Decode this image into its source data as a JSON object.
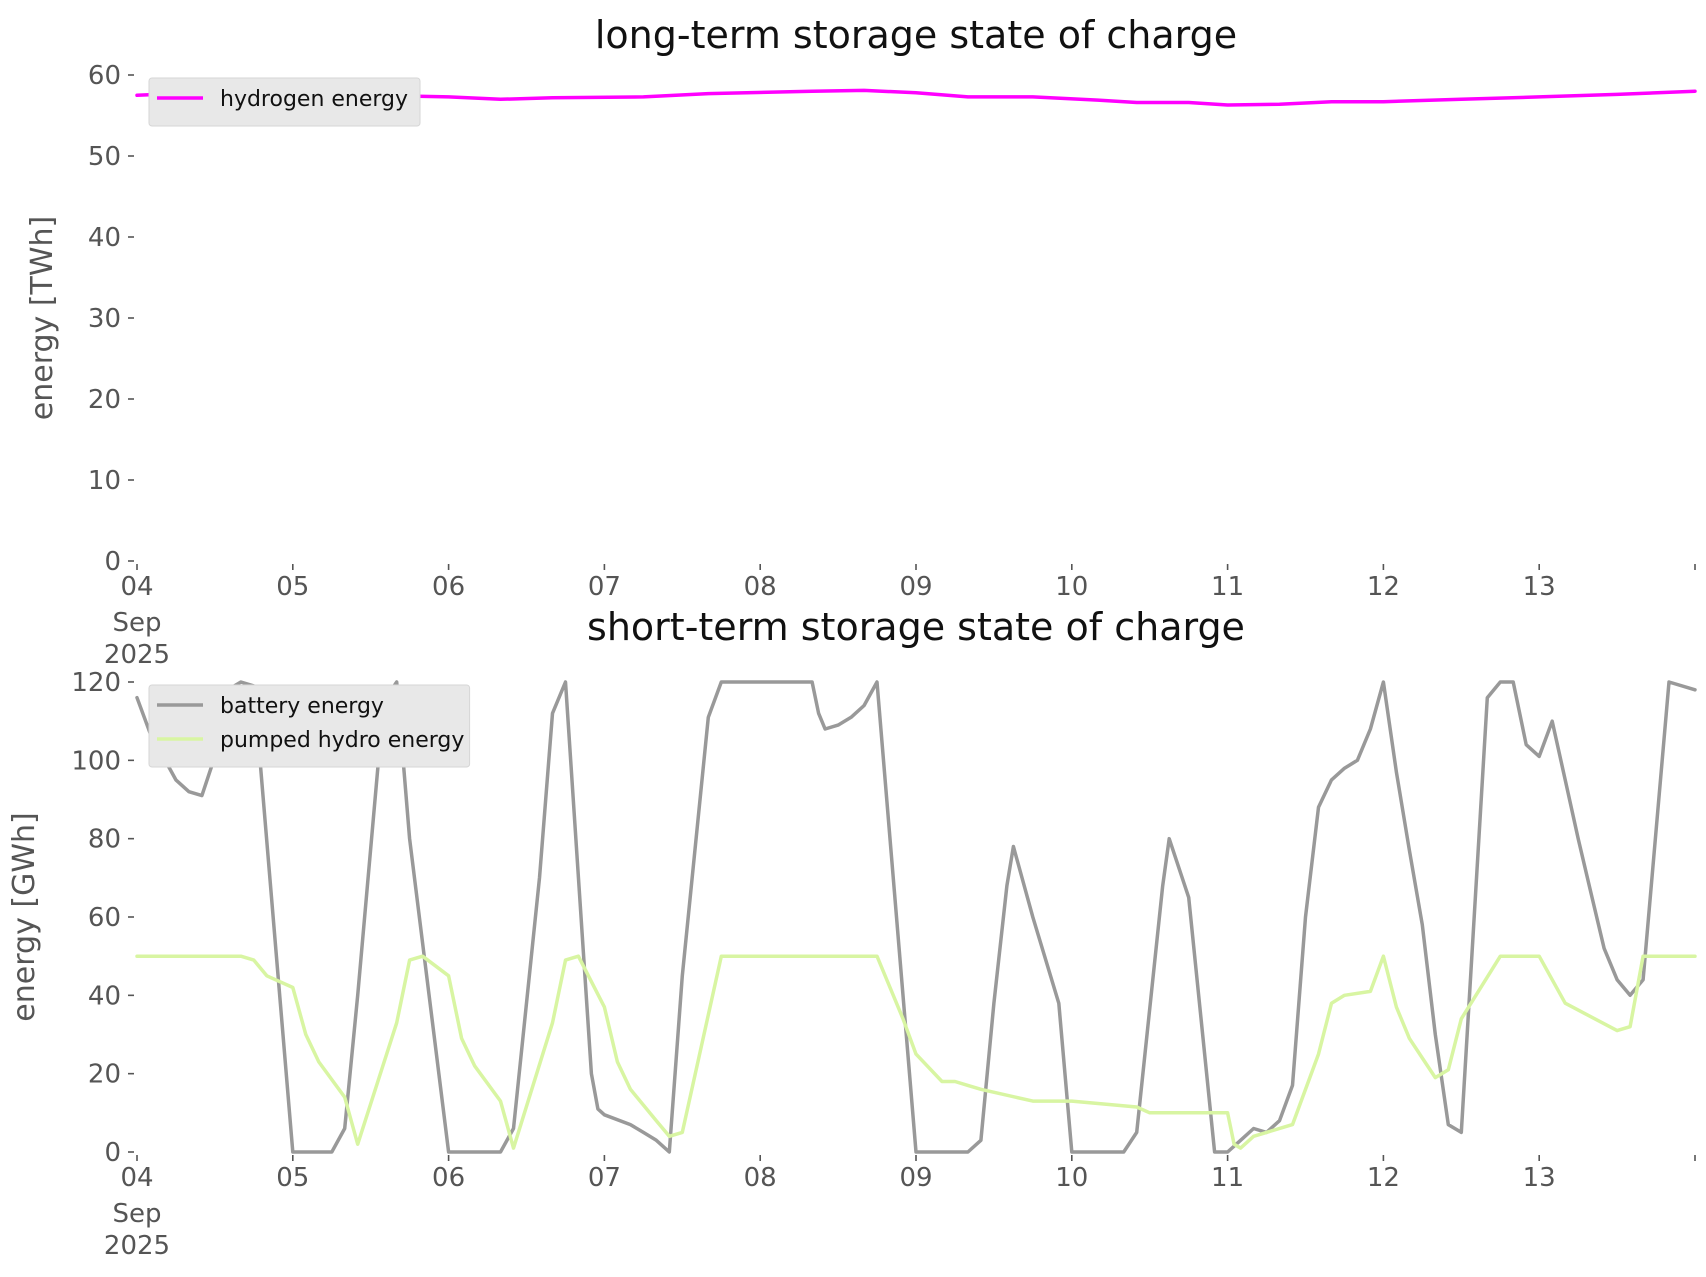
{
  "chart_data": [
    {
      "type": "line",
      "title": "long-term storage state of charge",
      "xlabel": "",
      "ylabel": "energy [TWh]",
      "ylim": [
        0,
        60
      ],
      "yticks": [
        0,
        10,
        20,
        30,
        40,
        50,
        60
      ],
      "xlim": [
        "2025-09-04",
        "2025-09-14"
      ],
      "xticks": [
        {
          "date": "2025-09-04",
          "label": "04",
          "sublabel": [
            "Sep",
            "2025"
          ]
        },
        {
          "date": "2025-09-05",
          "label": "05"
        },
        {
          "date": "2025-09-06",
          "label": "06"
        },
        {
          "date": "2025-09-07",
          "label": "07"
        },
        {
          "date": "2025-09-08",
          "label": "08"
        },
        {
          "date": "2025-09-09",
          "label": "09"
        },
        {
          "date": "2025-09-10",
          "label": "10"
        },
        {
          "date": "2025-09-11",
          "label": "11"
        },
        {
          "date": "2025-09-12",
          "label": "12"
        },
        {
          "date": "2025-09-13",
          "label": "13"
        }
      ],
      "grid": false,
      "legend_position": "upper-left",
      "series": [
        {
          "name": "hydrogen energy",
          "color": "#ff00ff",
          "x": [
            "2025-09-04 00:00",
            "2025-09-04 12:00",
            "2025-09-05 00:00",
            "2025-09-05 12:00",
            "2025-09-06 00:00",
            "2025-09-06 08:00",
            "2025-09-06 16:00",
            "2025-09-07 06:00",
            "2025-09-07 16:00",
            "2025-09-08 08:00",
            "2025-09-08 16:00",
            "2025-09-09 00:00",
            "2025-09-09 08:00",
            "2025-09-09 18:00",
            "2025-09-10 04:00",
            "2025-09-10 10:00",
            "2025-09-10 18:00",
            "2025-09-11 00:00",
            "2025-09-11 08:00",
            "2025-09-11 16:00",
            "2025-09-12 00:00",
            "2025-09-12 12:00",
            "2025-09-13 00:00",
            "2025-09-13 12:00",
            "2025-09-14 00:00"
          ],
          "y": [
            57.5,
            57.9,
            57.7,
            57.5,
            57.3,
            57.0,
            57.2,
            57.3,
            57.7,
            58.0,
            58.1,
            57.8,
            57.3,
            57.3,
            56.9,
            56.6,
            56.6,
            56.3,
            56.4,
            56.7,
            56.7,
            57.0,
            57.3,
            57.6,
            58.0
          ]
        }
      ]
    },
    {
      "type": "line",
      "title": "short-term storage state of charge",
      "xlabel": "",
      "ylabel": "energy [GWh]",
      "ylim": [
        0,
        120
      ],
      "yticks": [
        0,
        20,
        40,
        60,
        80,
        100,
        120
      ],
      "xlim": [
        "2025-09-04",
        "2025-09-14"
      ],
      "xticks": [
        {
          "date": "2025-09-04",
          "label": "04",
          "sublabel": [
            "Sep",
            "2025"
          ]
        },
        {
          "date": "2025-09-05",
          "label": "05"
        },
        {
          "date": "2025-09-06",
          "label": "06"
        },
        {
          "date": "2025-09-07",
          "label": "07"
        },
        {
          "date": "2025-09-08",
          "label": "08"
        },
        {
          "date": "2025-09-09",
          "label": "09"
        },
        {
          "date": "2025-09-10",
          "label": "10"
        },
        {
          "date": "2025-09-11",
          "label": "11"
        },
        {
          "date": "2025-09-12",
          "label": "12"
        },
        {
          "date": "2025-09-13",
          "label": "13"
        }
      ],
      "grid": false,
      "legend_position": "upper-left",
      "series": [
        {
          "name": "battery energy",
          "color": "#999999",
          "x": [
            "2025-09-04 00:00",
            "2025-09-04 02:00",
            "2025-09-04 04:00",
            "2025-09-04 06:00",
            "2025-09-04 08:00",
            "2025-09-04 10:00",
            "2025-09-04 12:00",
            "2025-09-04 14:00",
            "2025-09-04 16:00",
            "2025-09-04 18:00",
            "2025-09-05 00:00",
            "2025-09-05 06:00",
            "2025-09-05 08:00",
            "2025-09-05 10:00",
            "2025-09-05 14:00",
            "2025-09-05 16:00",
            "2025-09-05 18:00",
            "2025-09-06 00:00",
            "2025-09-06 08:00",
            "2025-09-06 10:00",
            "2025-09-06 14:00",
            "2025-09-06 16:00",
            "2025-09-06 18:00",
            "2025-09-06 22:00",
            "2025-09-06 23:00",
            "2025-09-07 00:00",
            "2025-09-07 04:00",
            "2025-09-07 06:00",
            "2025-09-07 08:00",
            "2025-09-07 10:00",
            "2025-09-07 12:00",
            "2025-09-07 16:00",
            "2025-09-07 18:00",
            "2025-09-08 06:00",
            "2025-09-08 08:00",
            "2025-09-08 09:00",
            "2025-09-08 10:00",
            "2025-09-08 12:00",
            "2025-09-08 14:00",
            "2025-09-08 16:00",
            "2025-09-08 18:00",
            "2025-09-09 00:00",
            "2025-09-09 08:00",
            "2025-09-09 10:00",
            "2025-09-09 12:00",
            "2025-09-09 14:00",
            "2025-09-09 15:00",
            "2025-09-09 18:00",
            "2025-09-09 22:00",
            "2025-09-10 00:00",
            "2025-09-10 08:00",
            "2025-09-10 10:00",
            "2025-09-10 14:00",
            "2025-09-10 15:00",
            "2025-09-10 18:00",
            "2025-09-10 22:00",
            "2025-09-11 00:00",
            "2025-09-11 02:00",
            "2025-09-11 04:00",
            "2025-09-11 06:00",
            "2025-09-11 08:00",
            "2025-09-11 10:00",
            "2025-09-11 12:00",
            "2025-09-11 14:00",
            "2025-09-11 16:00",
            "2025-09-11 18:00",
            "2025-09-11 20:00",
            "2025-09-11 22:00",
            "2025-09-12 00:00",
            "2025-09-12 02:00",
            "2025-09-12 04:00",
            "2025-09-12 06:00",
            "2025-09-12 08:00",
            "2025-09-12 10:00",
            "2025-09-12 12:00",
            "2025-09-12 16:00",
            "2025-09-12 18:00",
            "2025-09-12 20:00",
            "2025-09-12 22:00",
            "2025-09-13 00:00",
            "2025-09-13 02:00",
            "2025-09-13 04:00",
            "2025-09-13 06:00",
            "2025-09-13 08:00",
            "2025-09-13 10:00",
            "2025-09-13 12:00",
            "2025-09-13 14:00",
            "2025-09-13 16:00",
            "2025-09-13 20:00",
            "2025-09-14 00:00"
          ],
          "y": [
            116,
            107,
            101,
            95,
            92,
            91,
            101,
            118,
            120,
            119,
            0,
            0,
            6,
            40,
            115,
            120,
            80,
            0,
            0,
            6,
            70,
            112,
            120,
            20,
            11,
            9.5,
            7,
            5,
            3,
            0,
            45,
            111,
            120,
            120,
            120,
            112,
            108,
            109,
            111,
            114,
            120,
            0,
            0,
            3,
            38,
            68,
            78,
            60,
            38,
            0,
            0,
            5,
            68,
            80,
            65,
            0,
            0,
            3,
            6,
            5,
            8,
            17,
            60,
            88,
            95,
            98,
            100,
            108,
            120,
            97,
            77,
            58,
            30,
            7,
            5,
            116,
            120,
            120,
            104,
            101,
            110,
            95,
            80,
            66,
            52,
            44,
            40,
            44,
            120,
            118
          ]
        },
        {
          "name": "pumped hydro energy",
          "color": "#d8f5a2",
          "x": [
            "2025-09-04 00:00",
            "2025-09-04 16:00",
            "2025-09-04 18:00",
            "2025-09-04 20:00",
            "2025-09-05 00:00",
            "2025-09-05 02:00",
            "2025-09-05 04:00",
            "2025-09-05 08:00",
            "2025-09-05 09:00",
            "2025-09-05 10:00",
            "2025-09-05 16:00",
            "2025-09-05 18:00",
            "2025-09-05 20:00",
            "2025-09-06 00:00",
            "2025-09-06 02:00",
            "2025-09-06 04:00",
            "2025-09-06 08:00",
            "2025-09-06 10:00",
            "2025-09-06 16:00",
            "2025-09-06 18:00",
            "2025-09-06 20:00",
            "2025-09-07 00:00",
            "2025-09-07 02:00",
            "2025-09-07 04:00",
            "2025-09-07 08:00",
            "2025-09-07 10:00",
            "2025-09-07 12:00",
            "2025-09-07 18:00",
            "2025-09-07 20:00",
            "2025-09-08 18:00",
            "2025-09-08 22:00",
            "2025-09-09 00:00",
            "2025-09-09 04:00",
            "2025-09-09 06:00",
            "2025-09-09 08:00",
            "2025-09-09 10:00",
            "2025-09-09 18:00",
            "2025-09-10 00:00",
            "2025-09-10 10:00",
            "2025-09-10 12:00",
            "2025-09-10 14:00",
            "2025-09-11 00:00",
            "2025-09-11 01:00",
            "2025-09-11 02:00",
            "2025-09-11 04:00",
            "2025-09-11 06:00",
            "2025-09-11 10:00",
            "2025-09-11 14:00",
            "2025-09-11 16:00",
            "2025-09-11 18:00",
            "2025-09-11 22:00",
            "2025-09-12 00:00",
            "2025-09-12 02:00",
            "2025-09-12 04:00",
            "2025-09-12 06:00",
            "2025-09-12 08:00",
            "2025-09-12 10:00",
            "2025-09-12 12:00",
            "2025-09-12 18:00",
            "2025-09-13 00:00",
            "2025-09-13 04:00",
            "2025-09-13 12:00",
            "2025-09-13 14:00",
            "2025-09-13 16:00",
            "2025-09-14 00:00"
          ],
          "y": [
            50,
            50,
            49,
            45,
            42,
            30,
            23,
            14,
            8,
            2,
            33,
            49,
            50,
            45,
            29,
            22,
            13,
            1,
            33,
            49,
            50,
            37,
            23,
            16,
            8,
            4,
            5,
            50,
            50,
            50,
            34,
            25,
            18,
            18,
            17,
            16,
            13,
            13,
            11.5,
            10,
            10,
            10,
            2,
            1,
            4,
            5,
            7,
            25,
            38,
            40,
            41,
            50,
            37,
            29,
            24,
            19,
            21,
            34,
            50,
            50,
            38,
            31,
            32,
            50,
            50
          ]
        }
      ]
    }
  ]
}
